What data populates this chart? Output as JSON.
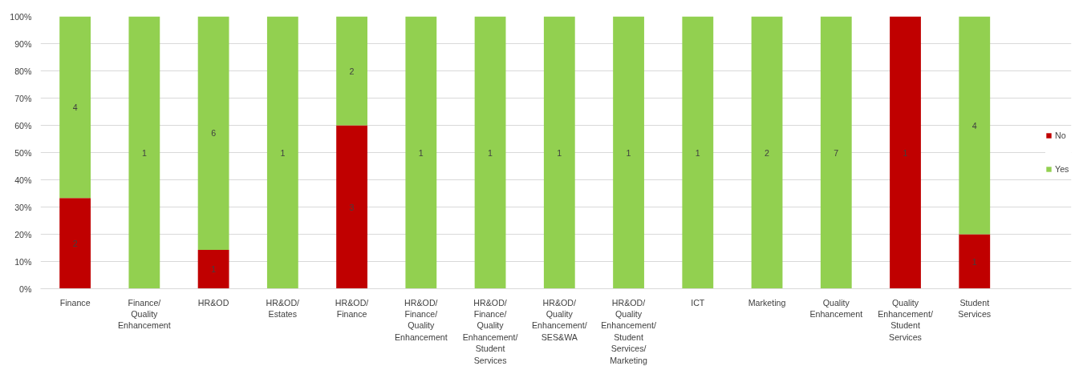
{
  "chart_data": {
    "type": "bar",
    "stacked": true,
    "categories": [
      "Finance",
      "Finance/Quality Enhancement",
      "HR&OD",
      "HR&OD/Estates",
      "HR&OD/Finance",
      "HR&OD/Finance/Quality Enhancement",
      "HR&OD/Finance/Quality Enhancement/Student Services",
      "HR&OD/Quality Enhancement/SES&WA",
      "HR&OD/Quality Enhancement/Student Services/Marketing",
      "ICT",
      "Marketing",
      "Quality Enhancement",
      "Quality Enhancement/Student Services",
      "Student Services"
    ],
    "series": [
      {
        "name": "No",
        "color": "#c00000",
        "values": [
          33.3,
          0,
          14.3,
          0,
          60,
          0,
          0,
          0,
          0,
          0,
          0,
          0,
          100,
          20
        ]
      },
      {
        "name": "Yes",
        "color": "#92d050",
        "values": [
          66.7,
          100,
          85.7,
          100,
          40,
          100,
          100,
          100,
          100,
          100,
          100,
          100,
          0,
          80
        ]
      }
    ],
    "annotations": [
      "2",
      "4",
      "1",
      "1",
      "6",
      "1",
      "3",
      "2",
      "1",
      "1",
      "1",
      "1",
      "1",
      "2",
      "7",
      "1",
      "1",
      "4"
    ],
    "ylim": [
      0,
      100
    ],
    "yticks": [
      {
        "value": 0,
        "label": "0%"
      },
      {
        "value": 10,
        "label": "10%"
      },
      {
        "value": 20,
        "label": "20%"
      },
      {
        "value": 30,
        "label": "30%"
      },
      {
        "value": 40,
        "label": "40%"
      },
      {
        "value": 50,
        "label": "50%"
      },
      {
        "value": 60,
        "label": "60%"
      },
      {
        "value": 70,
        "label": "70%"
      },
      {
        "value": 80,
        "label": "80%"
      },
      {
        "value": 90,
        "label": "90%"
      },
      {
        "value": 100,
        "label": "100%"
      }
    ],
    "grid": "y",
    "legend": "right"
  }
}
